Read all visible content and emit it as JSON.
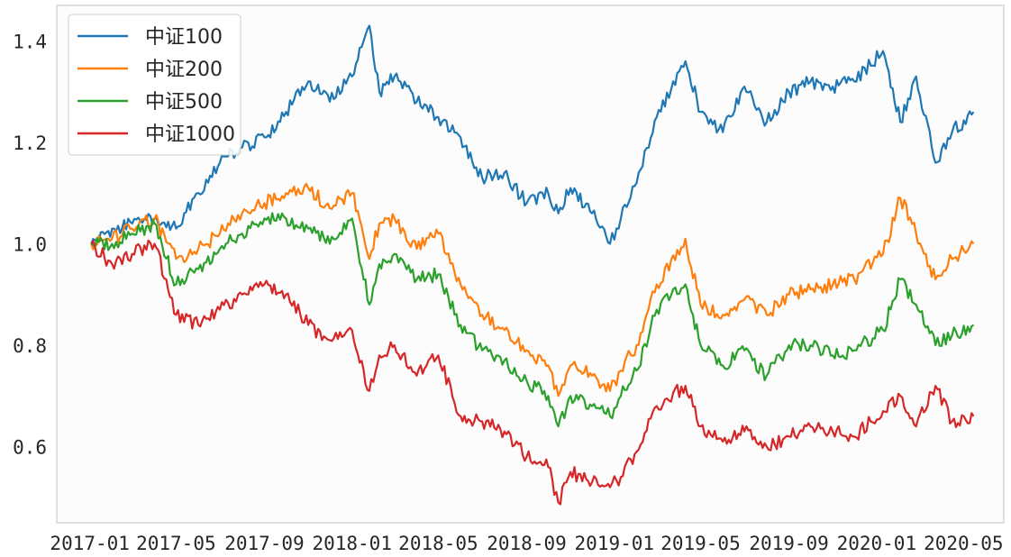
{
  "chart_data": {
    "type": "line",
    "title": "",
    "xlabel": "",
    "ylabel": "",
    "xlim": [
      "2016-11-16",
      "2020-06-26"
    ],
    "ylim": [
      0.45,
      1.47
    ],
    "grid": false,
    "legend_position": "top-left",
    "xticks": [
      "2017-01",
      "2017-05",
      "2017-09",
      "2018-01",
      "2018-05",
      "2018-09",
      "2019-01",
      "2019-05",
      "2019-09",
      "2020-01",
      "2020-05"
    ],
    "yticks": [
      0.6,
      0.8,
      1.0,
      1.2,
      1.4
    ],
    "ytick_labels": [
      "0.6",
      "0.8",
      "1.0",
      "1.2",
      "1.4"
    ],
    "x": [
      "2017-01-03",
      "2017-02-01",
      "2017-03-01",
      "2017-04-01",
      "2017-05-01",
      "2017-06-01",
      "2017-07-01",
      "2017-08-01",
      "2017-09-01",
      "2017-10-01",
      "2017-11-01",
      "2017-12-01",
      "2018-01-01",
      "2018-01-25",
      "2018-02-08",
      "2018-03-01",
      "2018-04-01",
      "2018-05-01",
      "2018-06-01",
      "2018-07-01",
      "2018-08-01",
      "2018-09-01",
      "2018-10-01",
      "2018-10-15",
      "2018-11-01",
      "2018-12-01",
      "2018-12-26",
      "2019-01-10",
      "2019-02-01",
      "2019-03-01",
      "2019-04-10",
      "2019-05-01",
      "2019-06-01",
      "2019-07-01",
      "2019-08-01",
      "2019-09-01",
      "2019-10-01",
      "2019-11-01",
      "2019-12-01",
      "2020-01-10",
      "2020-02-03",
      "2020-02-25",
      "2020-03-23",
      "2020-04-15",
      "2020-05-15"
    ],
    "series": [
      {
        "name": "中证100",
        "color": "#1f77b4",
        "values": [
          1.0,
          1.03,
          1.04,
          1.05,
          1.03,
          1.1,
          1.16,
          1.19,
          1.21,
          1.26,
          1.32,
          1.28,
          1.33,
          1.43,
          1.3,
          1.33,
          1.28,
          1.25,
          1.21,
          1.13,
          1.14,
          1.08,
          1.1,
          1.06,
          1.11,
          1.06,
          1.0,
          1.05,
          1.12,
          1.25,
          1.36,
          1.26,
          1.22,
          1.31,
          1.24,
          1.3,
          1.32,
          1.31,
          1.32,
          1.38,
          1.24,
          1.33,
          1.16,
          1.22,
          1.26
        ]
      },
      {
        "name": "中证200",
        "color": "#ff7f0e",
        "values": [
          1.0,
          1.01,
          1.03,
          1.05,
          0.97,
          0.99,
          1.02,
          1.06,
          1.08,
          1.1,
          1.11,
          1.07,
          1.1,
          0.97,
          1.04,
          1.05,
          0.99,
          1.02,
          0.92,
          0.86,
          0.83,
          0.79,
          0.76,
          0.7,
          0.76,
          0.74,
          0.71,
          0.75,
          0.8,
          0.92,
          1.01,
          0.88,
          0.86,
          0.89,
          0.86,
          0.9,
          0.91,
          0.92,
          0.93,
          0.98,
          1.09,
          1.02,
          0.93,
          0.97,
          1.0
        ]
      },
      {
        "name": "中证500",
        "color": "#2ca02c",
        "values": [
          1.0,
          1.0,
          1.02,
          1.04,
          0.92,
          0.95,
          0.99,
          1.02,
          1.05,
          1.05,
          1.03,
          1.0,
          1.05,
          0.88,
          0.96,
          0.98,
          0.93,
          0.94,
          0.84,
          0.79,
          0.77,
          0.73,
          0.7,
          0.64,
          0.7,
          0.68,
          0.66,
          0.7,
          0.75,
          0.87,
          0.92,
          0.8,
          0.76,
          0.79,
          0.74,
          0.8,
          0.8,
          0.78,
          0.79,
          0.83,
          0.93,
          0.88,
          0.8,
          0.82,
          0.84
        ]
      },
      {
        "name": "中证1000",
        "color": "#d62728",
        "values": [
          1.0,
          0.96,
          0.98,
          1.0,
          0.86,
          0.84,
          0.87,
          0.9,
          0.92,
          0.9,
          0.84,
          0.81,
          0.83,
          0.71,
          0.78,
          0.8,
          0.74,
          0.78,
          0.66,
          0.65,
          0.63,
          0.58,
          0.56,
          0.49,
          0.55,
          0.53,
          0.52,
          0.54,
          0.59,
          0.68,
          0.72,
          0.64,
          0.61,
          0.63,
          0.6,
          0.62,
          0.64,
          0.63,
          0.62,
          0.67,
          0.7,
          0.64,
          0.72,
          0.65,
          0.66
        ]
      }
    ]
  }
}
